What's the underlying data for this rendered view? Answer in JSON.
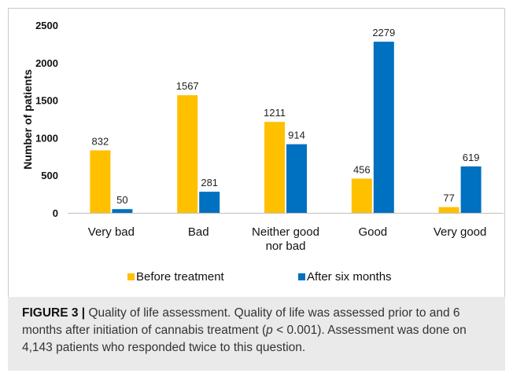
{
  "chart_data": {
    "type": "bar",
    "title": "",
    "xlabel": "",
    "ylabel": "Number of patients",
    "ylim": [
      0,
      2500
    ],
    "yticks": [
      "0",
      "500",
      "1000",
      "1500",
      "2000",
      "2500"
    ],
    "categories": [
      [
        "Very bad"
      ],
      [
        "Bad"
      ],
      [
        "Neither good",
        "nor bad"
      ],
      [
        "Good"
      ],
      [
        "Very good"
      ]
    ],
    "series": [
      {
        "name": "Before treatment",
        "color": "#FFC000",
        "values": [
          832,
          1567,
          1211,
          456,
          77
        ]
      },
      {
        "name": "After six months",
        "color": "#0070C0",
        "values": [
          50,
          281,
          914,
          2279,
          619
        ]
      }
    ],
    "grid": false,
    "legend_position": "bottom"
  },
  "caption": {
    "label": "FIGURE 3 |",
    "text": " Quality of life assessment. Quality of life was assessed prior to and 6 months after initiation of cannabis treatment (",
    "p_symbol": "p",
    "text2": " < 0.001). Assessment was done on 4,143 patients who responded twice to this question."
  }
}
